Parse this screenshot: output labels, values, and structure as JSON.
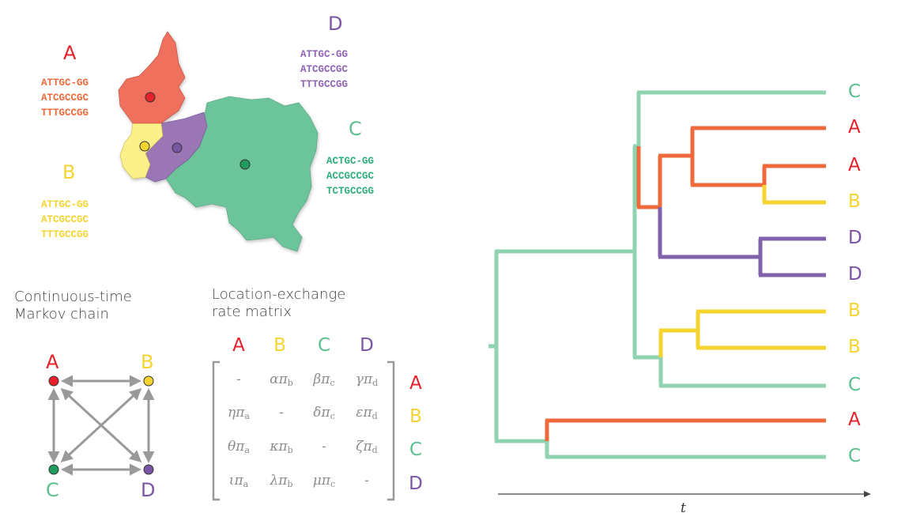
{
  "colors": {
    "A": "#e8202a",
    "A_branch": "#ef6a3a",
    "A_map": "#ef6f5c",
    "B": "#f6d430",
    "B_map": "#fbf08a",
    "C": "#5bbf8e",
    "C_branch": "#8fd3b0",
    "C_map": "#6cc49a",
    "D": "#7a55a5",
    "D_map": "#9a76b5",
    "D_branch": "#8160ac",
    "arrow": "#999999"
  },
  "map": {
    "regions": [
      {
        "label": "A",
        "sequences": [
          "ATTGC-GG",
          "ATCGCCGC",
          "TTTGCCGG"
        ]
      },
      {
        "label": "B",
        "sequences": [
          "ATTGC-GG",
          "ATCGCCGC",
          "TTTGCCGG"
        ]
      },
      {
        "label": "C",
        "sequences": [
          "ACTGC-GG",
          "ACCGCCGC",
          "TCTGCCGG"
        ]
      },
      {
        "label": "D",
        "sequences": [
          "ATTGC-GG",
          "ATCGCCGC",
          "TTTGCCGG"
        ]
      }
    ]
  },
  "markov": {
    "caption_line1": "Continuous-time",
    "caption_line2": "Markov chain",
    "nodes": [
      "A",
      "B",
      "C",
      "D"
    ]
  },
  "matrix": {
    "caption_line1": "Location-exchange",
    "caption_line2": "rate matrix",
    "columns": [
      "A",
      "B",
      "C",
      "D"
    ],
    "rows": [
      "A",
      "B",
      "C",
      "D"
    ],
    "cells": [
      [
        {
          "g": "-",
          "s": ""
        },
        {
          "g": "απ",
          "s": "b"
        },
        {
          "g": "βπ",
          "s": "c"
        },
        {
          "g": "γπ",
          "s": "d"
        }
      ],
      [
        {
          "g": "ηπ",
          "s": "a"
        },
        {
          "g": "-",
          "s": ""
        },
        {
          "g": "δπ",
          "s": "c"
        },
        {
          "g": "επ",
          "s": "d"
        }
      ],
      [
        {
          "g": "θπ",
          "s": "a"
        },
        {
          "g": "κπ",
          "s": "b"
        },
        {
          "g": "-",
          "s": ""
        },
        {
          "g": "ζπ",
          "s": "d"
        }
      ],
      [
        {
          "g": "ιπ",
          "s": "a"
        },
        {
          "g": "λπ",
          "s": "b"
        },
        {
          "g": "μπ",
          "s": "c"
        },
        {
          "g": "-",
          "s": ""
        }
      ]
    ]
  },
  "tree": {
    "tips": [
      "C",
      "A",
      "A",
      "B",
      "D",
      "D",
      "B",
      "B",
      "C",
      "A",
      "C"
    ],
    "axis_label": "t"
  }
}
